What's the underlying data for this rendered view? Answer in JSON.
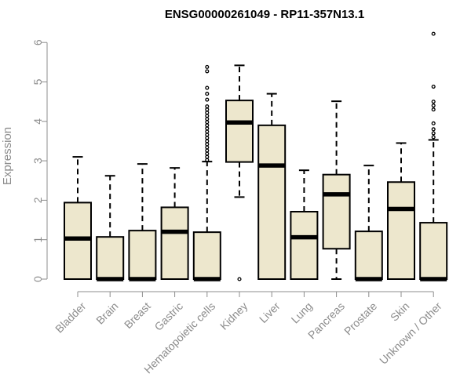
{
  "chart_data": {
    "type": "boxplot",
    "title": "ENSG00000261049 - RP11-357N13.1",
    "xlabel": "",
    "ylabel": "Expression",
    "ylim": [
      0,
      6.25
    ],
    "yticks": [
      0,
      1,
      2,
      3,
      4,
      5,
      6
    ],
    "grid": false,
    "box_fill": "#ede7cd",
    "outline_color": "#000000",
    "axis_color": "#8c8c8c",
    "categories": [
      "Bladder",
      "Brain",
      "Breast",
      "Gastric",
      "Hematopoietic cells",
      "Kidney",
      "Liver",
      "Lung",
      "Pancreas",
      "Prostate",
      "Skin",
      "Unknown / Other"
    ],
    "boxes": [
      {
        "category": "Bladder",
        "whisker_low": 0,
        "q1": 0,
        "median": 1.03,
        "q3": 1.94,
        "whisker_high": 3.1,
        "outliers": []
      },
      {
        "category": "Brain",
        "whisker_low": 0,
        "q1": 0,
        "median": 0,
        "q3": 1.07,
        "whisker_high": 2.62,
        "outliers": []
      },
      {
        "category": "Breast",
        "whisker_low": 0,
        "q1": 0,
        "median": 0,
        "q3": 1.23,
        "whisker_high": 2.92,
        "outliers": []
      },
      {
        "category": "Gastric",
        "whisker_low": 0,
        "q1": 0,
        "median": 1.2,
        "q3": 1.82,
        "whisker_high": 2.82,
        "outliers": []
      },
      {
        "category": "Hematopoietic cells",
        "whisker_low": 0,
        "q1": 0,
        "median": 0,
        "q3": 1.19,
        "whisker_high": 2.98,
        "outliers": [
          3.02,
          3.1,
          3.18,
          3.26,
          3.34,
          3.42,
          3.5,
          3.58,
          3.66,
          3.74,
          3.82,
          3.9,
          3.98,
          4.06,
          4.14,
          4.22,
          4.3,
          4.38,
          4.55,
          4.7,
          4.85,
          5.27,
          5.38
        ]
      },
      {
        "category": "Kidney",
        "whisker_low": 2.08,
        "q1": 2.97,
        "median": 3.97,
        "q3": 4.53,
        "whisker_high": 5.42,
        "outliers": [
          0
        ]
      },
      {
        "category": "Liver",
        "whisker_low": 0,
        "q1": 0,
        "median": 2.88,
        "q3": 3.9,
        "whisker_high": 4.7,
        "outliers": []
      },
      {
        "category": "Lung",
        "whisker_low": 0,
        "q1": 0,
        "median": 1.06,
        "q3": 1.71,
        "whisker_high": 2.76,
        "outliers": []
      },
      {
        "category": "Pancreas",
        "whisker_low": 0,
        "q1": 0.77,
        "median": 2.15,
        "q3": 2.65,
        "whisker_high": 4.51,
        "outliers": []
      },
      {
        "category": "Prostate",
        "whisker_low": 0,
        "q1": 0,
        "median": 0,
        "q3": 1.21,
        "whisker_high": 2.88,
        "outliers": []
      },
      {
        "category": "Skin",
        "whisker_low": 0,
        "q1": 0,
        "median": 1.78,
        "q3": 2.46,
        "whisker_high": 3.45,
        "outliers": []
      },
      {
        "category": "Unknown / Other",
        "whisker_low": 0,
        "q1": 0,
        "median": 0,
        "q3": 1.43,
        "whisker_high": 3.53,
        "outliers": [
          3.6,
          3.7,
          3.8,
          3.95,
          4.3,
          4.4,
          4.5,
          4.88,
          6.22
        ]
      }
    ]
  }
}
